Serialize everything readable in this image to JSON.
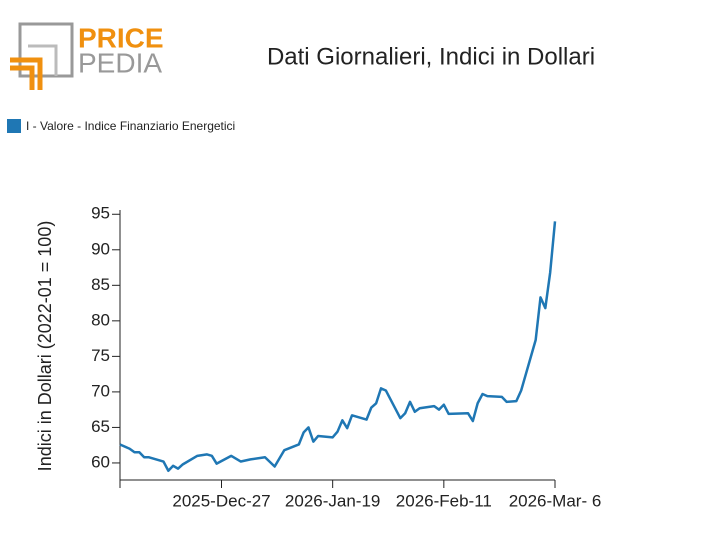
{
  "logo": {
    "top": "PRICE",
    "bottom": "PEDIA"
  },
  "chart_data": {
    "type": "line",
    "title": "Dati Giornalieri, Indici in Dollari",
    "y_label": "Indici in Dollari (2022-01 = 100)",
    "legend_position": "top-left",
    "x": [
      "2025-12-06",
      "2025-12-08",
      "2025-12-09",
      "2025-12-10",
      "2025-12-11",
      "2025-12-12",
      "2025-12-15",
      "2025-12-16",
      "2025-12-17",
      "2025-12-18",
      "2025-12-19",
      "2025-12-22",
      "2025-12-24",
      "2025-12-25",
      "2025-12-26",
      "2025-12-29",
      "2025-12-30",
      "2025-12-31",
      "2026-01-02",
      "2026-01-05",
      "2026-01-07",
      "2026-01-09",
      "2026-01-12",
      "2026-01-13",
      "2026-01-14",
      "2026-01-15",
      "2026-01-16",
      "2026-01-19",
      "2026-01-20",
      "2026-01-21",
      "2026-01-22",
      "2026-01-23",
      "2026-01-26",
      "2026-01-27",
      "2026-01-28",
      "2026-01-29",
      "2026-01-30",
      "2026-02-02",
      "2026-02-03",
      "2026-02-04",
      "2026-02-05",
      "2026-02-06",
      "2026-02-09",
      "2026-02-10",
      "2026-02-11",
      "2026-02-12",
      "2026-02-16",
      "2026-02-17",
      "2026-02-18",
      "2026-02-19",
      "2026-02-20",
      "2026-02-23",
      "2026-02-24",
      "2026-02-26",
      "2026-02-27",
      "2026-03-02",
      "2026-03-03",
      "2026-03-04",
      "2026-03-05",
      "2026-03-06"
    ],
    "series": [
      {
        "name": "I - Valore - Indice Finanziario Energetici",
        "color": "#1f77b4",
        "values": [
          62.6,
          62.0,
          61.5,
          61.5,
          60.8,
          60.8,
          60.2,
          58.9,
          59.6,
          59.2,
          59.8,
          61.0,
          61.2,
          61.0,
          59.9,
          61.0,
          60.6,
          60.2,
          60.5,
          60.8,
          59.5,
          61.8,
          62.6,
          64.3,
          65.0,
          63.0,
          63.8,
          63.6,
          64.4,
          66.0,
          64.9,
          66.7,
          66.1,
          67.8,
          68.4,
          70.5,
          70.2,
          66.3,
          67.0,
          68.6,
          67.2,
          67.7,
          68.0,
          67.5,
          68.2,
          66.9,
          67.0,
          65.9,
          68.4,
          69.7,
          69.4,
          69.3,
          68.6,
          68.7,
          70.2,
          77.3,
          83.3,
          81.8,
          86.8,
          94.0
        ]
      }
    ],
    "xlim": [
      "2025-12-06",
      "2026-03-06"
    ],
    "xticks": [
      {
        "value": "2025-12-27",
        "label": "2025-Dec-27"
      },
      {
        "value": "2026-01-19",
        "label": "2026-Jan-19"
      },
      {
        "value": "2026-02-11",
        "label": "2026-Feb-11"
      },
      {
        "value": "2026-03-06",
        "label": "2026-Mar- 6"
      }
    ],
    "ylim": [
      57.6,
      95.6
    ],
    "yticks": [
      60,
      65,
      70,
      75,
      80,
      85,
      90,
      95
    ]
  }
}
